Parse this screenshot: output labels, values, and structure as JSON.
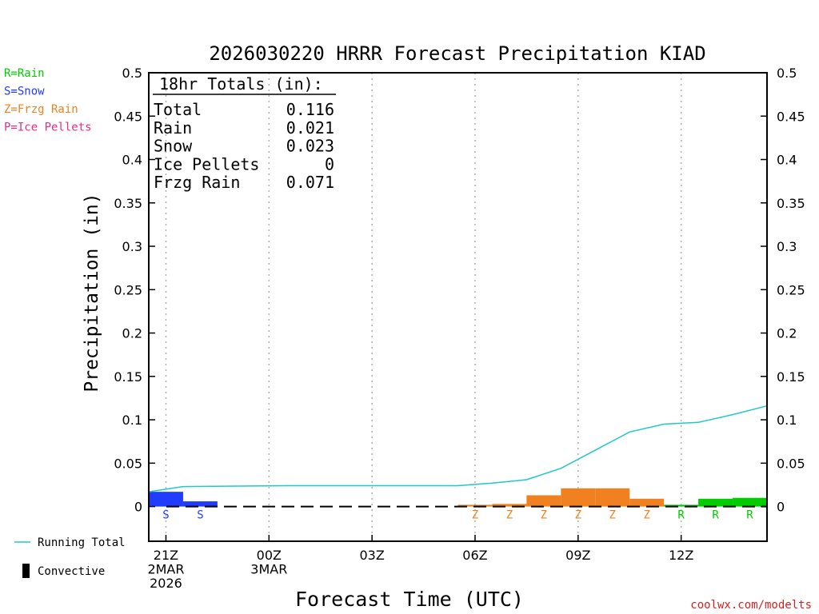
{
  "chart_data": {
    "type": "bar",
    "title": "2026030220 HRRR Forecast Precipitation KIAD",
    "xlabel": "Forecast Time (UTC)",
    "ylabel": "Precipitation (in)",
    "ylim": [
      -0.04,
      0.5
    ],
    "yticks": [
      "0.5",
      "0.45",
      "0.4",
      "0.35",
      "0.3",
      "0.25",
      "0.2",
      "0.15",
      "0.1",
      "0.05",
      "0"
    ],
    "ytick_values": [
      0.5,
      0.45,
      0.4,
      0.35,
      0.3,
      0.25,
      0.2,
      0.15,
      0.1,
      0.05,
      0
    ],
    "xlim": [
      -0.5,
      17.5
    ],
    "xticks": [
      {
        "hour": 0,
        "line1": "21Z",
        "line2": "2MAR",
        "line3": "2026"
      },
      {
        "hour": 3,
        "line1": "00Z",
        "line2": "3MAR",
        "line3": ""
      },
      {
        "hour": 6,
        "line1": "03Z",
        "line2": "",
        "line3": ""
      },
      {
        "hour": 9,
        "line1": "06Z",
        "line2": "",
        "line3": ""
      },
      {
        "hour": 12,
        "line1": "09Z",
        "line2": "",
        "line3": ""
      },
      {
        "hour": 15,
        "line1": "12Z",
        "line2": "",
        "line3": ""
      }
    ],
    "bars": [
      {
        "hour": 0,
        "value": 0.017,
        "type": "S"
      },
      {
        "hour": 1,
        "value": 0.006,
        "type": "S"
      },
      {
        "hour": 2,
        "value": 0.0,
        "type": ""
      },
      {
        "hour": 3,
        "value": 0.0,
        "type": ""
      },
      {
        "hour": 4,
        "value": 0.0,
        "type": ""
      },
      {
        "hour": 5,
        "value": 0.0,
        "type": ""
      },
      {
        "hour": 6,
        "value": 0.0,
        "type": ""
      },
      {
        "hour": 7,
        "value": 0.0,
        "type": ""
      },
      {
        "hour": 8,
        "value": 0.0,
        "type": ""
      },
      {
        "hour": 9,
        "value": 0.002,
        "type": "Z"
      },
      {
        "hour": 10,
        "value": 0.003,
        "type": "Z"
      },
      {
        "hour": 11,
        "value": 0.013,
        "type": "Z"
      },
      {
        "hour": 12,
        "value": 0.021,
        "type": "Z"
      },
      {
        "hour": 13,
        "value": 0.021,
        "type": "Z"
      },
      {
        "hour": 14,
        "value": 0.009,
        "type": "Z"
      },
      {
        "hour": 15,
        "value": 0.002,
        "type": "R"
      },
      {
        "hour": 16,
        "value": 0.009,
        "type": "R"
      },
      {
        "hour": 17,
        "value": 0.01,
        "type": "R"
      }
    ],
    "running_total": [
      {
        "hour": -0.5,
        "value": 0.017
      },
      {
        "hour": 0.5,
        "value": 0.023
      },
      {
        "hour": 3.5,
        "value": 0.024
      },
      {
        "hour": 8.5,
        "value": 0.024
      },
      {
        "hour": 9.5,
        "value": 0.027
      },
      {
        "hour": 10.5,
        "value": 0.031
      },
      {
        "hour": 11.5,
        "value": 0.044
      },
      {
        "hour": 12.5,
        "value": 0.065
      },
      {
        "hour": 13.5,
        "value": 0.086
      },
      {
        "hour": 14.5,
        "value": 0.095
      },
      {
        "hour": 15.5,
        "value": 0.097
      },
      {
        "hour": 16.5,
        "value": 0.106
      },
      {
        "hour": 17.5,
        "value": 0.116
      }
    ],
    "colors": {
      "R": "#00cc00",
      "S": "#1f3cff",
      "Z": "#f08020",
      "P": "#e0308a",
      "running_total": "#20c8c8"
    },
    "type_legend": [
      {
        "key": "R",
        "label": "R=Rain",
        "color": "#00cc00"
      },
      {
        "key": "S",
        "label": "S=Snow",
        "color": "#1f3cff"
      },
      {
        "key": "Z",
        "label": "Z=Frzg Rain",
        "color": "#f08020"
      },
      {
        "key": "P",
        "label": "P=Ice Pellets",
        "color": "#e0308a"
      }
    ],
    "series_legend": {
      "running_total": "Running Total",
      "convective": "Convective"
    },
    "totals": {
      "heading": "18hr Totals (in):",
      "rows": [
        {
          "label": "Total",
          "value": "0.116"
        },
        {
          "label": "Rain",
          "value": "0.021"
        },
        {
          "label": "Snow",
          "value": "0.023"
        },
        {
          "label": "Ice Pellets",
          "value": "0"
        },
        {
          "label": "Frzg Rain",
          "value": "0.071"
        }
      ]
    },
    "credit": "coolwx.com/modelts"
  }
}
